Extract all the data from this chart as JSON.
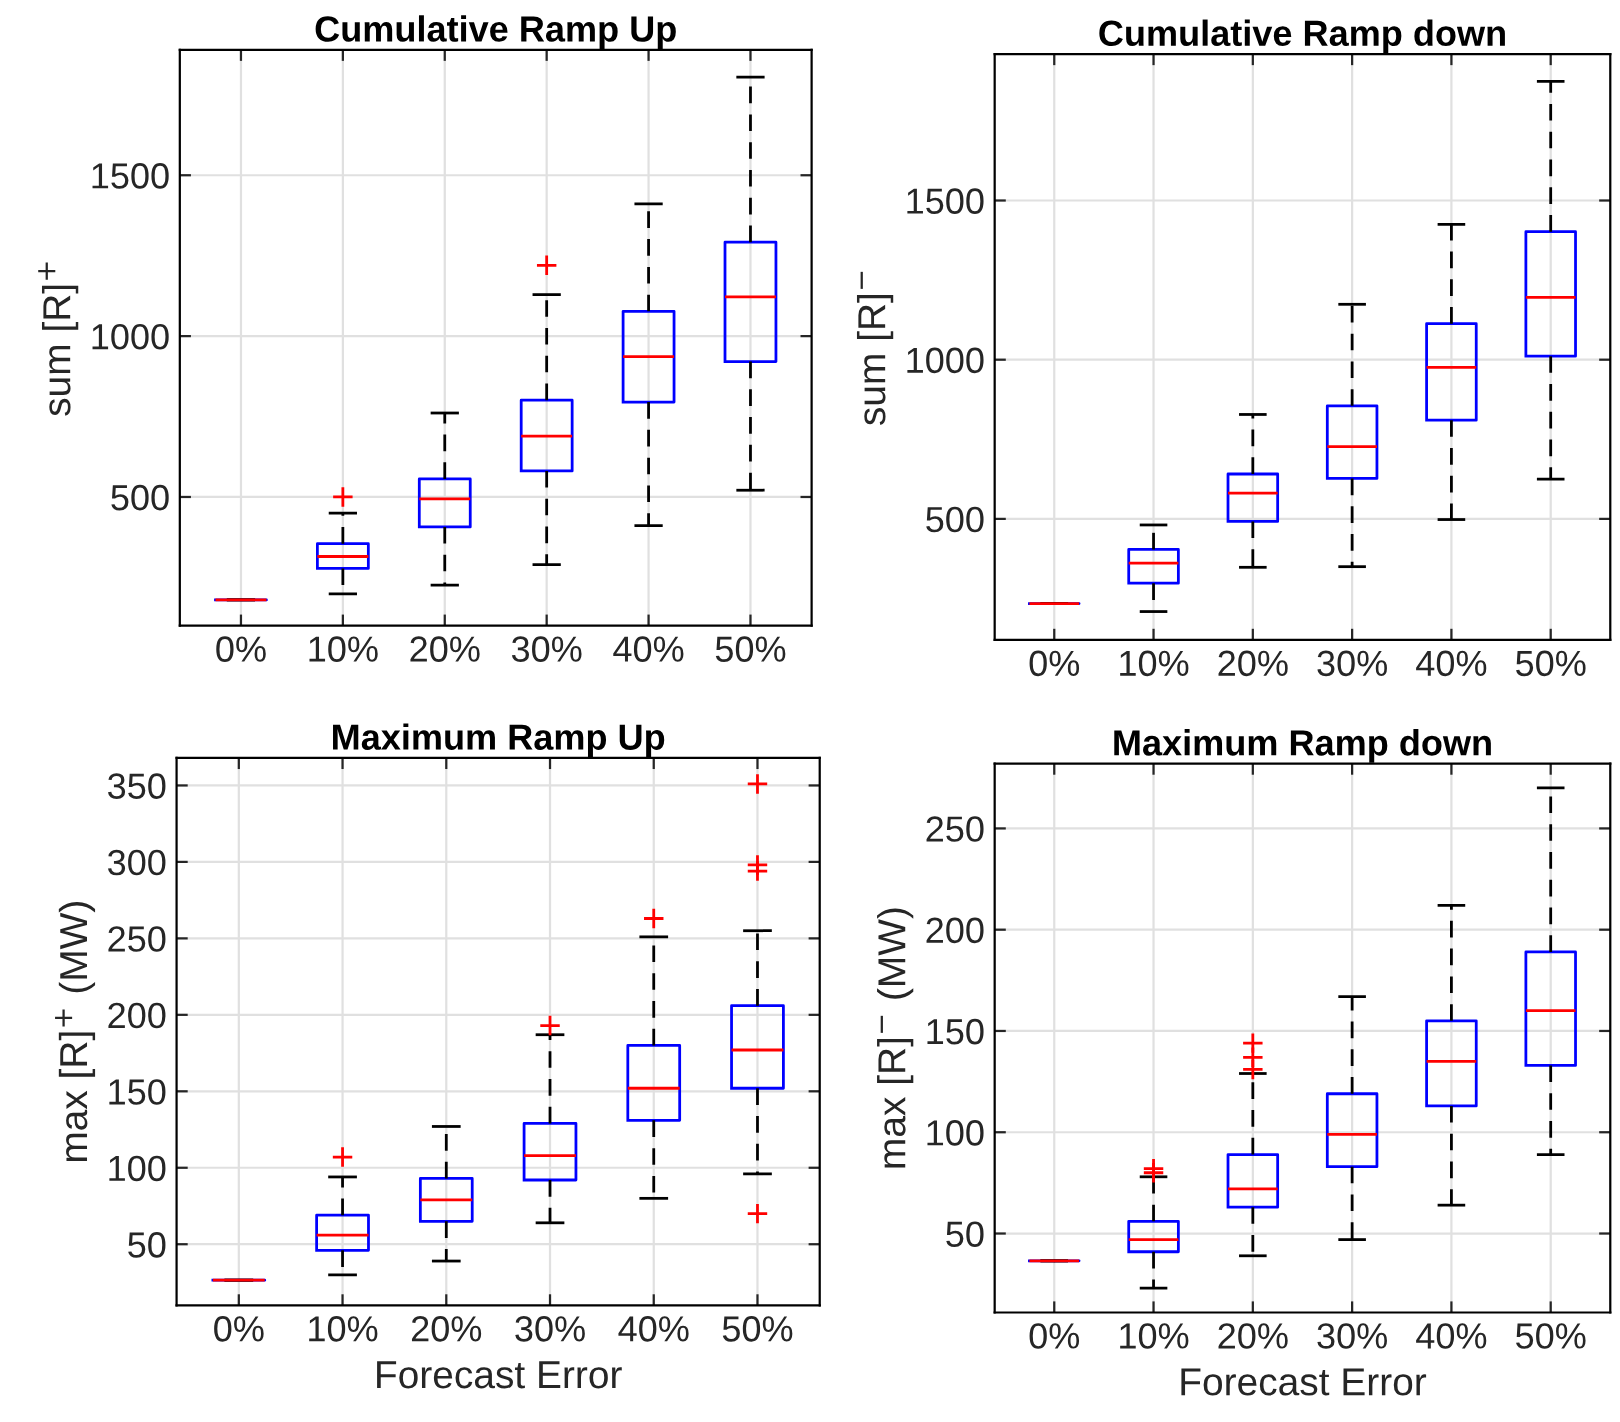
{
  "chart_data": [
    {
      "type": "box",
      "title": "Cumulative Ramp Up",
      "ylabel": "sum [R]$^{+}$",
      "categories": [
        "0%",
        "10%",
        "20%",
        "30%",
        "40%",
        "50%"
      ],
      "ylim": [
        100,
        1890
      ],
      "yticks": [
        500,
        1000,
        1500
      ],
      "grid": true,
      "marker": "cross",
      "line_style": "dashed",
      "series": [
        {
          "color": "#0000ff",
          "boxes": [
            {
              "low": 180,
              "q1": 180,
              "median": 180,
              "q3": 180,
              "high": 180
            },
            {
              "low": 199,
              "q1": 278,
              "median": 315,
              "q3": 355,
              "high": 450,
              "outliers": [
                500
              ]
            },
            {
              "low": 226,
              "q1": 407,
              "median": 494,
              "q3": 556,
              "high": 761
            },
            {
              "low": 290,
              "q1": 581,
              "median": 689,
              "q3": 801,
              "high": 1129,
              "outliers": [
                1220
              ]
            },
            {
              "low": 411,
              "q1": 795,
              "median": 936,
              "q3": 1077,
              "high": 1411
            },
            {
              "low": 521,
              "q1": 921,
              "median": 1122,
              "q3": 1292,
              "high": 1805
            }
          ]
        }
      ]
    },
    {
      "type": "box",
      "title": "Cumulative Ramp down",
      "ylabel": "sum [R]$^{−}$",
      "categories": [
        "0%",
        "10%",
        "20%",
        "30%",
        "40%",
        "50%"
      ],
      "ylim": [
        120,
        1960
      ],
      "yticks": [
        500,
        1000,
        1500
      ],
      "grid": true,
      "marker": "cross",
      "line_style": "dashed",
      "series": [
        {
          "color": "#0000ff",
          "boxes": [
            {
              "low": 234,
              "q1": 234,
              "median": 234,
              "q3": 234,
              "high": 234
            },
            {
              "low": 209,
              "q1": 298,
              "median": 361,
              "q3": 404,
              "high": 481
            },
            {
              "low": 348,
              "q1": 492,
              "median": 581,
              "q3": 641,
              "high": 828
            },
            {
              "low": 350,
              "q1": 627,
              "median": 727,
              "q3": 855,
              "high": 1174
            },
            {
              "low": 498,
              "q1": 810,
              "median": 976,
              "q3": 1113,
              "high": 1425
            },
            {
              "low": 625,
              "q1": 1011,
              "median": 1196,
              "q3": 1402,
              "high": 1874
            }
          ]
        }
      ]
    },
    {
      "type": "box",
      "title": "Maximum Ramp Up",
      "ylabel": "max [R]$^{+}$ (MW)",
      "xlabel": "Forecast Error",
      "categories": [
        "0%",
        "10%",
        "20%",
        "30%",
        "40%",
        "50%"
      ],
      "ylim": [
        10,
        368
      ],
      "yticks": [
        50,
        100,
        150,
        200,
        250,
        300,
        350
      ],
      "grid": true,
      "marker": "cross",
      "line_style": "dashed",
      "series": [
        {
          "color": "#0000ff",
          "boxes": [
            {
              "low": 26.5,
              "q1": 26.5,
              "median": 26.5,
              "q3": 26.5,
              "high": 26.5
            },
            {
              "low": 30,
              "q1": 46,
              "median": 56,
              "q3": 69,
              "high": 94,
              "outliers": [
                107
              ]
            },
            {
              "low": 39,
              "q1": 65,
              "median": 79,
              "q3": 93,
              "high": 127
            },
            {
              "low": 64,
              "q1": 92,
              "median": 108,
              "q3": 129,
              "high": 187,
              "outliers": [
                193
              ]
            },
            {
              "low": 80,
              "q1": 131,
              "median": 152,
              "q3": 180,
              "high": 251,
              "outliers": [
                263
              ]
            },
            {
              "low": 96,
              "q1": 152,
              "median": 177,
              "q3": 206,
              "high": 255,
              "outliers": [
                70,
                294,
                298,
                351
              ]
            }
          ]
        }
      ]
    },
    {
      "type": "box",
      "title": "Maximum Ramp down",
      "ylabel": "max [R]$^{−}$ (MW)",
      "xlabel": "Forecast Error",
      "categories": [
        "0%",
        "10%",
        "20%",
        "30%",
        "40%",
        "50%"
      ],
      "ylim": [
        11,
        282
      ],
      "yticks": [
        50,
        100,
        150,
        200,
        250
      ],
      "grid": true,
      "marker": "cross",
      "line_style": "dashed",
      "series": [
        {
          "color": "#0000ff",
          "boxes": [
            {
              "low": 36.5,
              "q1": 36.5,
              "median": 36.5,
              "q3": 36.5,
              "high": 36.5
            },
            {
              "low": 23,
              "q1": 41,
              "median": 47,
              "q3": 56,
              "high": 78,
              "outliers": [
                80,
                82
              ]
            },
            {
              "low": 39,
              "q1": 63,
              "median": 72,
              "q3": 89,
              "high": 129,
              "outliers": [
                131,
                137,
                144
              ]
            },
            {
              "low": 47,
              "q1": 83,
              "median": 99,
              "q3": 119,
              "high": 167
            },
            {
              "low": 64,
              "q1": 113,
              "median": 135,
              "q3": 155,
              "high": 212
            },
            {
              "low": 89,
              "q1": 133,
              "median": 160,
              "q3": 189,
              "high": 270
            }
          ]
        }
      ]
    }
  ]
}
